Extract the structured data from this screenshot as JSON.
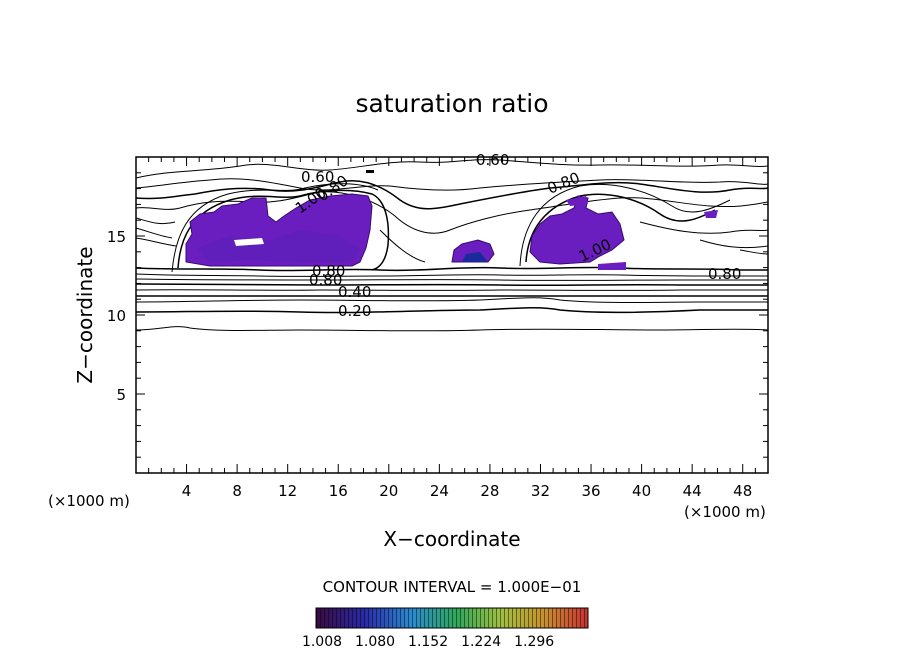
{
  "chart_data": {
    "type": "contour",
    "title": "saturation ratio",
    "xlabel": "X−coordinate",
    "ylabel": "Z−coordinate",
    "x_unit_left": "(×1000 m)",
    "x_unit_right": "(×1000 m)",
    "xlim": [
      0,
      50
    ],
    "ylim": [
      0,
      20
    ],
    "x_ticks": [
      4,
      8,
      12,
      16,
      20,
      24,
      28,
      32,
      36,
      40,
      44,
      48
    ],
    "y_ticks": [
      5,
      10,
      15
    ],
    "contour_interval_text": "CONTOUR INTERVAL = 1.000E−01",
    "contour_labels": [
      "0.60",
      "0.60",
      "0.80",
      "1.00",
      "0.80",
      "1.00",
      "0.80",
      "0.80",
      "0.80",
      "0.40",
      "0.20"
    ],
    "colorbar": {
      "ticks": [
        "1.008",
        "1.080",
        "1.152",
        "1.224",
        "1.296"
      ],
      "colors": [
        "#3a0a3a",
        "#2a2aa8",
        "#2a8ad0",
        "#30a858",
        "#a0c040",
        "#c89030",
        "#c83030"
      ]
    },
    "fill_color": "#6a1ec0"
  }
}
